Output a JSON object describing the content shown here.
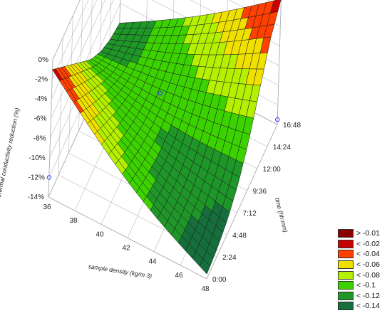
{
  "chart_data": {
    "type": "surface3d",
    "title": "",
    "xlabel": "sample density (kg/m  3)",
    "ylabel": "time (hh:mm)",
    "zlabel": "thermal conductivity reduction (%)",
    "x_ticks": [
      "36",
      "38",
      "40",
      "42",
      "44",
      "46",
      "48"
    ],
    "y_ticks": [
      "0:00",
      "2:24",
      "4:48",
      "7:12",
      "9:36",
      "12:00",
      "14:24",
      "16:48"
    ],
    "z_ticks": [
      "0%",
      "-2%",
      "-4%",
      "-6%",
      "-8%",
      "-10%",
      "-12%",
      "-14%"
    ],
    "xlim": [
      36,
      48
    ],
    "ylim_hours": [
      0,
      16.8
    ],
    "zlim": [
      -0.14,
      0
    ],
    "grid": true,
    "legend_position": "bottom-right",
    "legend": [
      {
        "label": "> -0.01",
        "color": "#8b0000"
      },
      {
        "label": "< -0.02",
        "color": "#c80000"
      },
      {
        "label": "< -0.04",
        "color": "#ff4000"
      },
      {
        "label": "< -0.06",
        "color": "#f0e000"
      },
      {
        "label": "< -0.08",
        "color": "#b4f000"
      },
      {
        "label": "< -0.1",
        "color": "#3cd200"
      },
      {
        "label": "< -0.12",
        "color": "#1e9628"
      },
      {
        "label": "< -0.14",
        "color": "#156e3c"
      }
    ],
    "surface_edges": {
      "density_at_36_vs_time": [
        -0.12,
        -0.115,
        -0.105,
        -0.09,
        -0.07,
        -0.05,
        -0.03,
        -0.01
      ],
      "density_at_48_vs_time": [
        -0.012,
        -0.03,
        -0.06,
        -0.09,
        -0.112,
        -0.125,
        -0.132,
        -0.135
      ]
    },
    "observed_points": [
      {
        "density": 36,
        "time": "0:00",
        "value": -0.12
      },
      {
        "density": 42,
        "time": "7:12",
        "value": -0.06
      },
      {
        "density": 48,
        "time": "16:48",
        "value": -0.135
      }
    ]
  }
}
